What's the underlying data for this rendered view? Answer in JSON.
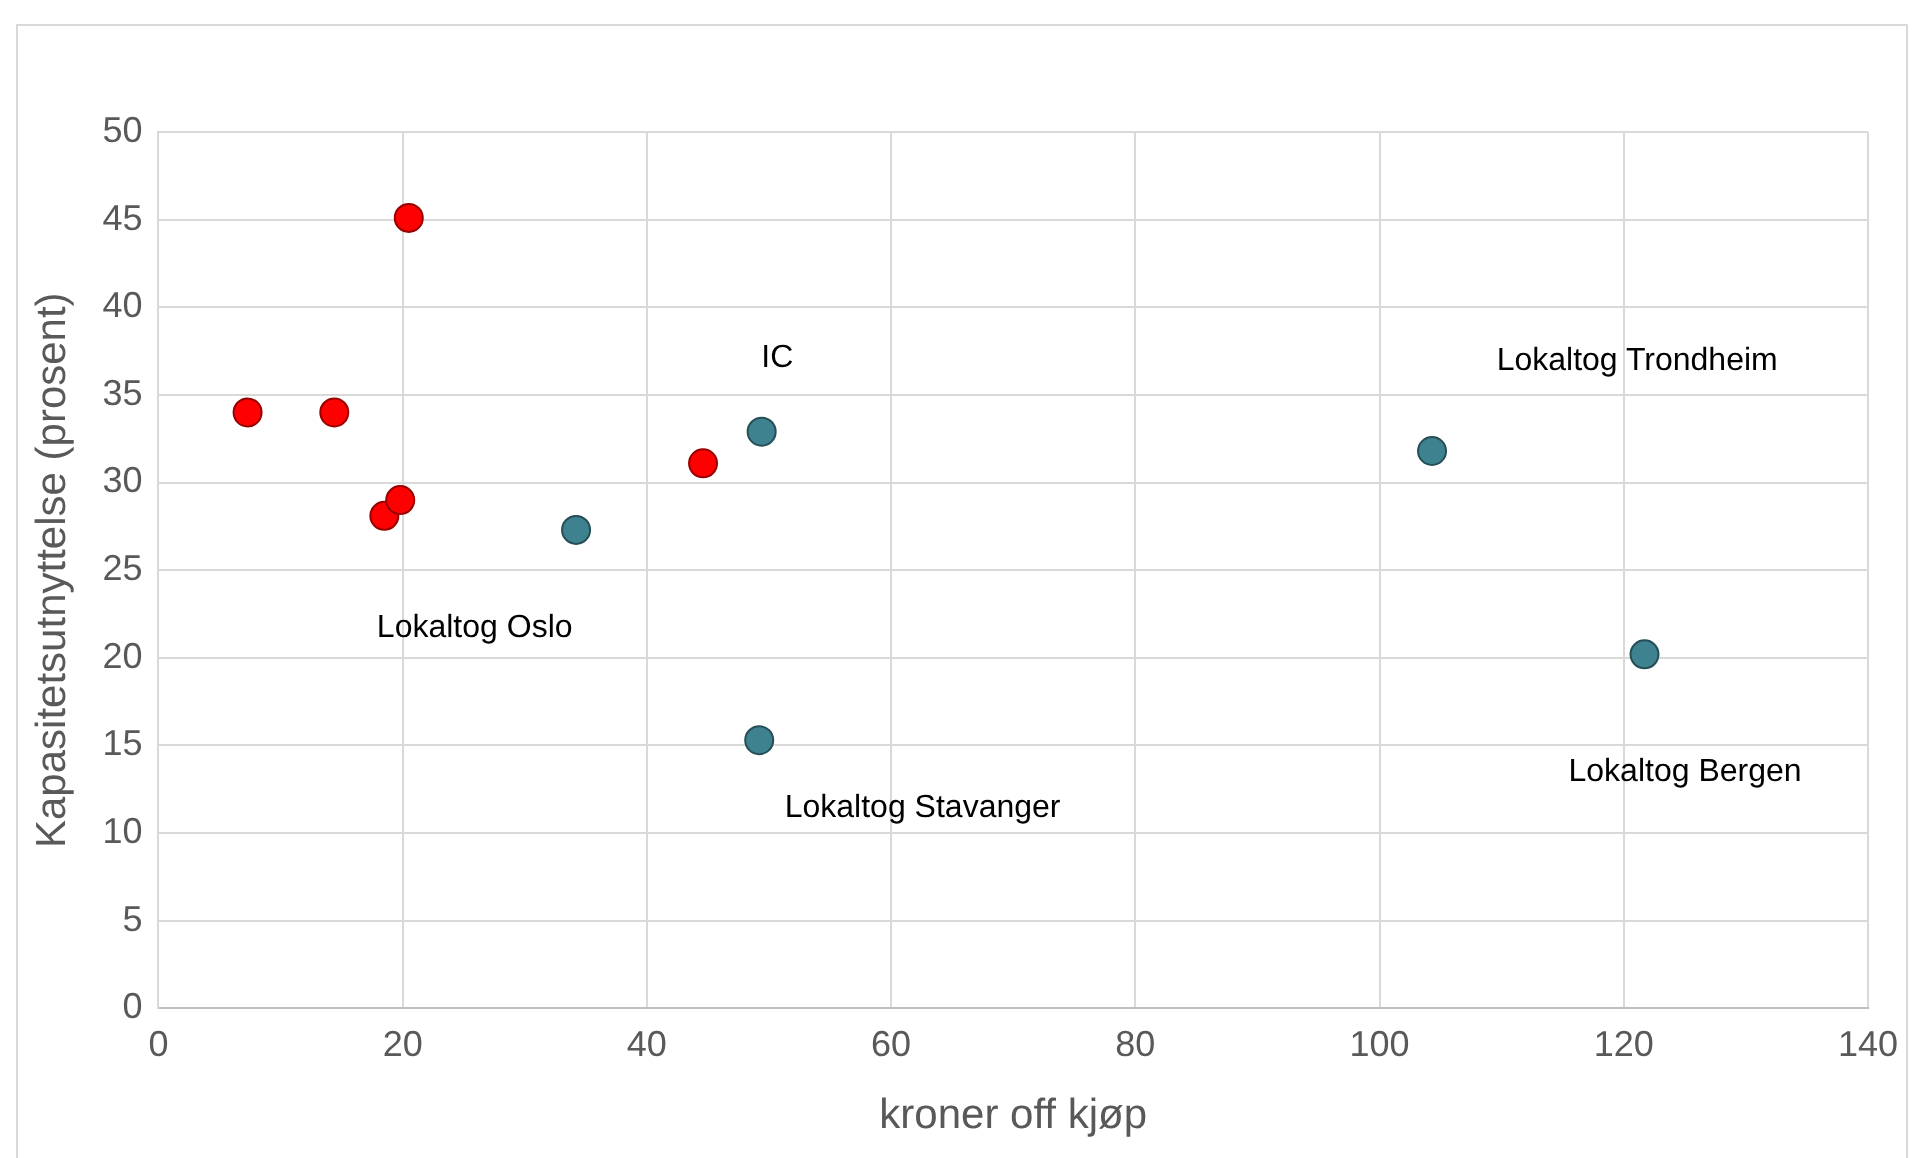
{
  "chart_data": {
    "type": "scatter",
    "xlabel": "kroner off kjøp",
    "ylabel": "Kapasitetsutnyttelse (prosent)",
    "xlim": [
      0,
      140
    ],
    "xticks": [
      0,
      20,
      40,
      60,
      80,
      100,
      120,
      140
    ],
    "ylim": [
      0,
      50
    ],
    "yticks": [
      0,
      5,
      10,
      15,
      20,
      25,
      30,
      35,
      40,
      45,
      50
    ],
    "grid": true,
    "legend": false,
    "marker": "circle",
    "series": [
      {
        "color": "#ff0000",
        "x": [
          7.3,
          14.4,
          18.5,
          19.8,
          20.5,
          44.6
        ],
        "values": [
          34,
          34,
          28.1,
          29,
          45.1,
          31.1
        ]
      },
      {
        "color": "#3e8290",
        "x": [
          34.2,
          49.4,
          49.2,
          104.3,
          121.7
        ],
        "values": [
          27.3,
          32.9,
          15.3,
          31.8,
          20.2
        ]
      }
    ],
    "annotations": [
      "IC",
      "Lokaltog Trondheim",
      "Lokaltog Oslo",
      "Lokaltog Bergen",
      "Lokaltog Stavanger"
    ]
  }
}
